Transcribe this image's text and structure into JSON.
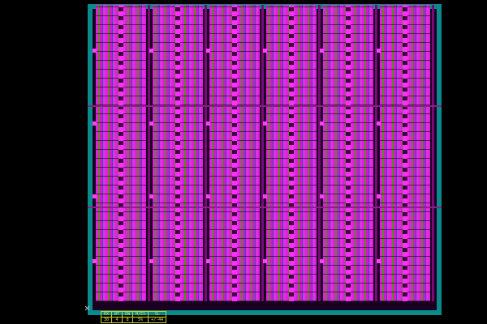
{
  "layout_view": {
    "colors": {
      "background": "#000000",
      "frame": "#0a8a8a",
      "metal": "#e020e0",
      "poly": "#5a8a20",
      "table": "#e0e040"
    },
    "block_columns": 6,
    "block_rows": 3,
    "origin_marker_icon": "cross-icon"
  },
  "info_table": {
    "headers": [
      "RX",
      "ØT",
      "DW",
      "M/ES",
      "SL"
    ],
    "row": [
      "30",
      "4",
      "8",
      "5%",
      "+/-44"
    ]
  }
}
